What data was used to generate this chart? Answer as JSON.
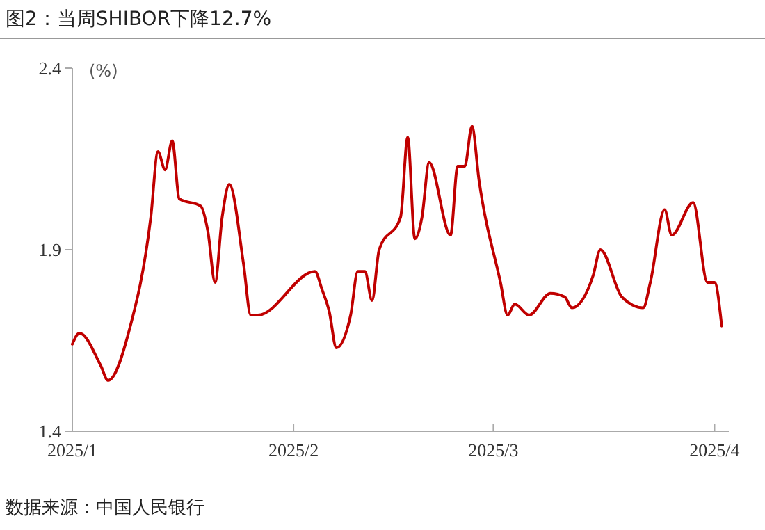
{
  "chart_data": {
    "type": "line",
    "title": "图2：当周SHIBOR下降12.7%",
    "ylabel": "(%)",
    "annotations": [
      "数据来源：中国人民银行"
    ],
    "x": [
      "2025-01-01",
      "2025-01-02",
      "2025-01-05",
      "2025-01-06",
      "2025-01-09",
      "2025-01-12",
      "2025-01-13",
      "2025-01-14",
      "2025-01-15",
      "2025-01-16",
      "2025-01-19",
      "2025-01-20",
      "2025-01-21",
      "2025-01-22",
      "2025-01-23",
      "2025-01-25",
      "2025-01-26",
      "2025-01-27",
      "2025-02-04",
      "2025-02-05",
      "2025-02-06",
      "2025-02-07",
      "2025-02-09",
      "2025-02-10",
      "2025-02-11",
      "2025-02-12",
      "2025-02-13",
      "2025-02-16",
      "2025-02-17",
      "2025-02-18",
      "2025-02-19",
      "2025-02-20",
      "2025-02-23",
      "2025-02-24",
      "2025-02-25",
      "2025-02-26",
      "2025-02-27",
      "2025-03-02",
      "2025-03-03",
      "2025-03-04",
      "2025-03-06",
      "2025-03-09",
      "2025-03-11",
      "2025-03-12",
      "2025-03-15",
      "2025-03-16",
      "2025-03-19",
      "2025-03-22",
      "2025-03-23",
      "2025-03-25",
      "2025-03-26",
      "2025-03-29",
      "2025-03-31",
      "2025-04-01",
      "2025-04-02"
    ],
    "series": [
      {
        "color": "#c00000",
        "values": [
          1.64,
          1.67,
          1.58,
          1.54,
          1.68,
          1.99,
          2.17,
          2.12,
          2.2,
          2.04,
          2.02,
          1.95,
          1.81,
          1.99,
          2.08,
          1.86,
          1.72,
          1.72,
          1.84,
          1.79,
          1.73,
          1.63,
          1.72,
          1.84,
          1.84,
          1.76,
          1.9,
          1.99,
          2.21,
          1.93,
          1.99,
          2.14,
          1.94,
          2.13,
          2.13,
          2.24,
          2.09,
          1.81,
          1.72,
          1.75,
          1.72,
          1.78,
          1.77,
          1.74,
          1.83,
          1.9,
          1.77,
          1.74,
          1.81,
          2.01,
          1.94,
          2.03,
          1.81,
          1.81,
          1.69
        ]
      }
    ],
    "xlim": [
      "2025-01-01",
      "2025-04-03"
    ],
    "xticks": [
      {
        "value": "2025-01-01",
        "label": "2025/1"
      },
      {
        "value": "2025-02-01",
        "label": "2025/2"
      },
      {
        "value": "2025-03-01",
        "label": "2025/3"
      },
      {
        "value": "2025-04-01",
        "label": "2025/4"
      }
    ],
    "ylim": [
      1.4,
      2.4
    ],
    "yticks": [
      1.4,
      1.9,
      2.4
    ],
    "grid": false,
    "marker": "none",
    "line_style": "solid"
  }
}
